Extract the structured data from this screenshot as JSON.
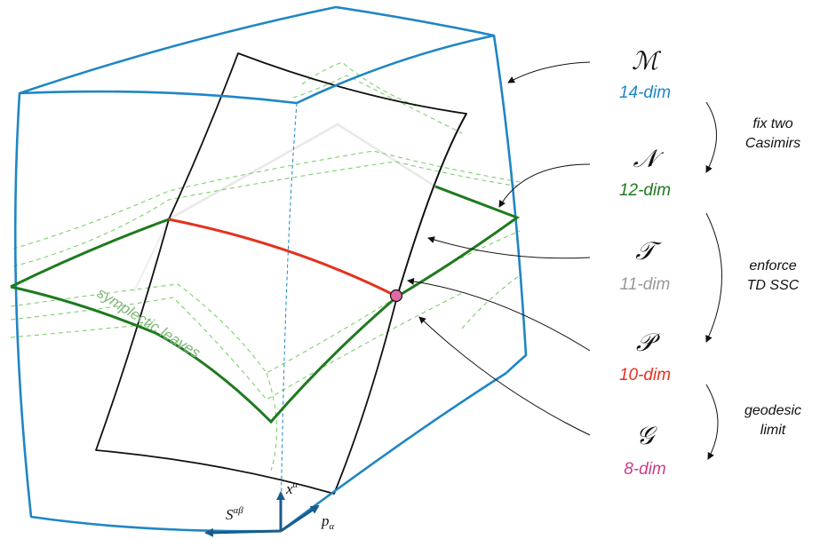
{
  "spaces": [
    {
      "symbol": "ℳ",
      "dim": "14-dim",
      "color": "#1f86c5"
    },
    {
      "symbol": "𝒩",
      "dim": "12-dim",
      "color": "#1e7a1e"
    },
    {
      "symbol": "𝒯",
      "dim": "11-dim",
      "color": "#9a9a9a"
    },
    {
      "symbol": "𝒫",
      "dim": "10-dim",
      "color": "#e4321e"
    },
    {
      "symbol": "𝒢",
      "dim": "8-dim",
      "color": "#c83c8c"
    }
  ],
  "steps": [
    {
      "line1": "fix two",
      "line2": "Casimirs"
    },
    {
      "line1": "enforce",
      "line2": "TD SSC"
    },
    {
      "line1": "geodesic",
      "line2": "limit"
    }
  ],
  "leaves_label": "symplectic leaves",
  "axes": {
    "x": "x",
    "x_sup": "α",
    "S": "S",
    "S_sup": "αβ",
    "p": "p",
    "p_sub": "α"
  },
  "colors": {
    "blue": "#1f86c5",
    "green": "#1e7a1e",
    "light_green": "#7fcf6f",
    "red": "#e4321e",
    "pink": "#e06aa8",
    "axis": "#1a5c8a",
    "leaf_label": "#7fb779"
  }
}
